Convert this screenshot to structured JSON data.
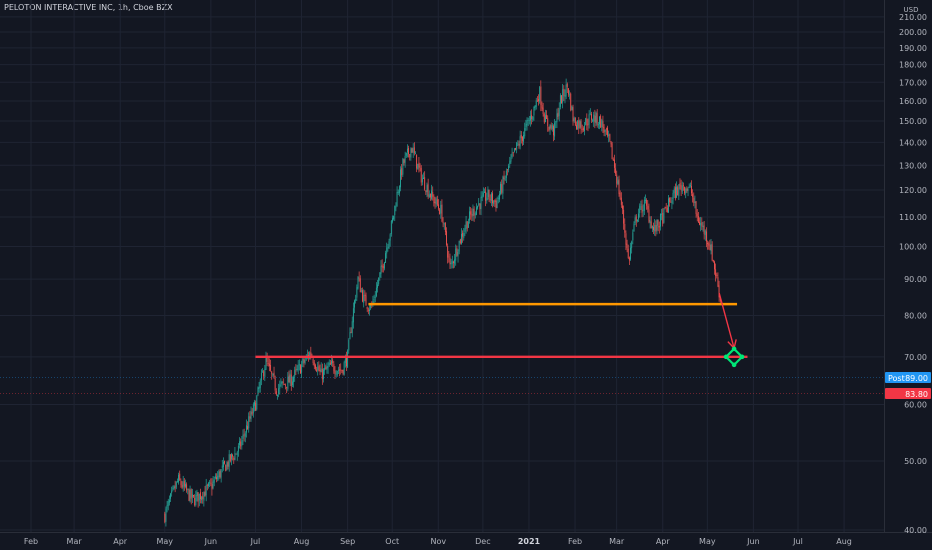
{
  "header": {
    "symbol_title": "PELOTON INTERACTIVE INC, 1h, Cboe BZX",
    "currency": "USD"
  },
  "price_tags": {
    "post_label": "Post",
    "post_value": "89.00",
    "last_value": "83.80"
  },
  "colors": {
    "background": "#131722",
    "grid": "#1f2433",
    "candle_up": "#26a69a",
    "candle_down": "#ef5350",
    "support_upper": "#ff9800",
    "support_lower": "#f23645",
    "target_marker": "#00e676",
    "post_tag": "#2196f3",
    "last_tag": "#f23645"
  },
  "chart_data": {
    "type": "candlestick",
    "title": "PELOTON INTERACTIVE INC",
    "interval": "1h",
    "exchange": "Cboe BZX",
    "ylim": [
      40,
      210
    ],
    "y_scale": "log",
    "y_ticks": [
      "40.00",
      "50.00",
      "60.00",
      "70.00",
      "80.00",
      "90.00",
      "100.00",
      "110.00",
      "120.00",
      "130.00",
      "140.00",
      "150.00",
      "160.00",
      "170.00",
      "180.00",
      "190.00",
      "200.00",
      "210.00"
    ],
    "x_ticks": [
      {
        "label": "Feb",
        "date": "2020-02-01"
      },
      {
        "label": "Mar",
        "date": "2020-03-01"
      },
      {
        "label": "Apr",
        "date": "2020-04-01"
      },
      {
        "label": "May",
        "date": "2020-05-01"
      },
      {
        "label": "Jun",
        "date": "2020-06-01"
      },
      {
        "label": "Jul",
        "date": "2020-07-01"
      },
      {
        "label": "Aug",
        "date": "2020-08-01"
      },
      {
        "label": "Sep",
        "date": "2020-09-01"
      },
      {
        "label": "Oct",
        "date": "2020-10-01"
      },
      {
        "label": "Nov",
        "date": "2020-11-01"
      },
      {
        "label": "Dec",
        "date": "2020-12-01"
      },
      {
        "label": "2021",
        "date": "2021-01-01",
        "bold": true
      },
      {
        "label": "Feb",
        "date": "2021-02-01"
      },
      {
        "label": "Mar",
        "date": "2021-03-01"
      },
      {
        "label": "Apr",
        "date": "2021-04-01"
      },
      {
        "label": "May",
        "date": "2021-05-01"
      },
      {
        "label": "Jun",
        "date": "2021-06-01"
      },
      {
        "label": "Jul",
        "date": "2021-07-01"
      },
      {
        "label": "Aug",
        "date": "2021-08-01"
      }
    ],
    "grid": true,
    "price_path": [
      [
        "2020-05-01",
        42
      ],
      [
        "2020-05-10",
        47
      ],
      [
        "2020-05-20",
        44
      ],
      [
        "2020-06-01",
        46
      ],
      [
        "2020-06-10",
        49
      ],
      [
        "2020-06-20",
        52
      ],
      [
        "2020-07-01",
        60
      ],
      [
        "2020-07-08",
        69
      ],
      [
        "2020-07-15",
        63
      ],
      [
        "2020-07-25",
        65
      ],
      [
        "2020-08-01",
        68
      ],
      [
        "2020-08-07",
        71
      ],
      [
        "2020-08-14",
        66
      ],
      [
        "2020-08-21",
        68
      ],
      [
        "2020-08-28",
        67
      ],
      [
        "2020-09-01",
        70
      ],
      [
        "2020-09-04",
        79
      ],
      [
        "2020-09-08",
        90
      ],
      [
        "2020-09-12",
        84
      ],
      [
        "2020-09-17",
        82
      ],
      [
        "2020-09-24",
        93
      ],
      [
        "2020-10-01",
        108
      ],
      [
        "2020-10-08",
        130
      ],
      [
        "2020-10-14",
        138
      ],
      [
        "2020-10-20",
        126
      ],
      [
        "2020-10-27",
        118
      ],
      [
        "2020-11-03",
        112
      ],
      [
        "2020-11-09",
        93
      ],
      [
        "2020-11-14",
        100
      ],
      [
        "2020-11-20",
        108
      ],
      [
        "2020-11-27",
        114
      ],
      [
        "2020-12-04",
        118
      ],
      [
        "2020-12-10",
        115
      ],
      [
        "2020-12-16",
        125
      ],
      [
        "2020-12-22",
        135
      ],
      [
        "2020-12-29",
        145
      ],
      [
        "2021-01-04",
        155
      ],
      [
        "2021-01-08",
        165
      ],
      [
        "2021-01-12",
        150
      ],
      [
        "2021-01-18",
        145
      ],
      [
        "2021-01-22",
        160
      ],
      [
        "2021-01-27",
        168
      ],
      [
        "2021-01-31",
        150
      ],
      [
        "2021-02-06",
        148
      ],
      [
        "2021-02-12",
        152
      ],
      [
        "2021-02-18",
        150
      ],
      [
        "2021-02-24",
        140
      ],
      [
        "2021-03-01",
        125
      ],
      [
        "2021-03-04",
        115
      ],
      [
        "2021-03-09",
        95
      ],
      [
        "2021-03-14",
        110
      ],
      [
        "2021-03-20",
        115
      ],
      [
        "2021-03-26",
        105
      ],
      [
        "2021-04-01",
        110
      ],
      [
        "2021-04-08",
        118
      ],
      [
        "2021-04-14",
        122
      ],
      [
        "2021-04-20",
        120
      ],
      [
        "2021-04-24",
        110
      ],
      [
        "2021-04-29",
        105
      ],
      [
        "2021-05-03",
        100
      ],
      [
        "2021-05-06",
        93
      ],
      [
        "2021-05-10",
        83.8
      ]
    ],
    "annotations": [
      {
        "type": "horizontal_line",
        "name": "support-upper",
        "price": 83,
        "from": "2020-09-15",
        "to": "2021-05-21",
        "color": "#ff9800"
      },
      {
        "type": "horizontal_line",
        "name": "support-lower",
        "price": 70,
        "from": "2020-07-01",
        "to": "2021-05-28",
        "color": "#f23645"
      },
      {
        "type": "arrow",
        "from_date": "2021-05-09",
        "from_price": 86,
        "to_date": "2021-05-19",
        "to_price": 72,
        "color": "#f23645"
      },
      {
        "type": "target_marker",
        "date": "2021-05-19",
        "price": 70,
        "color": "#00e676"
      }
    ]
  }
}
